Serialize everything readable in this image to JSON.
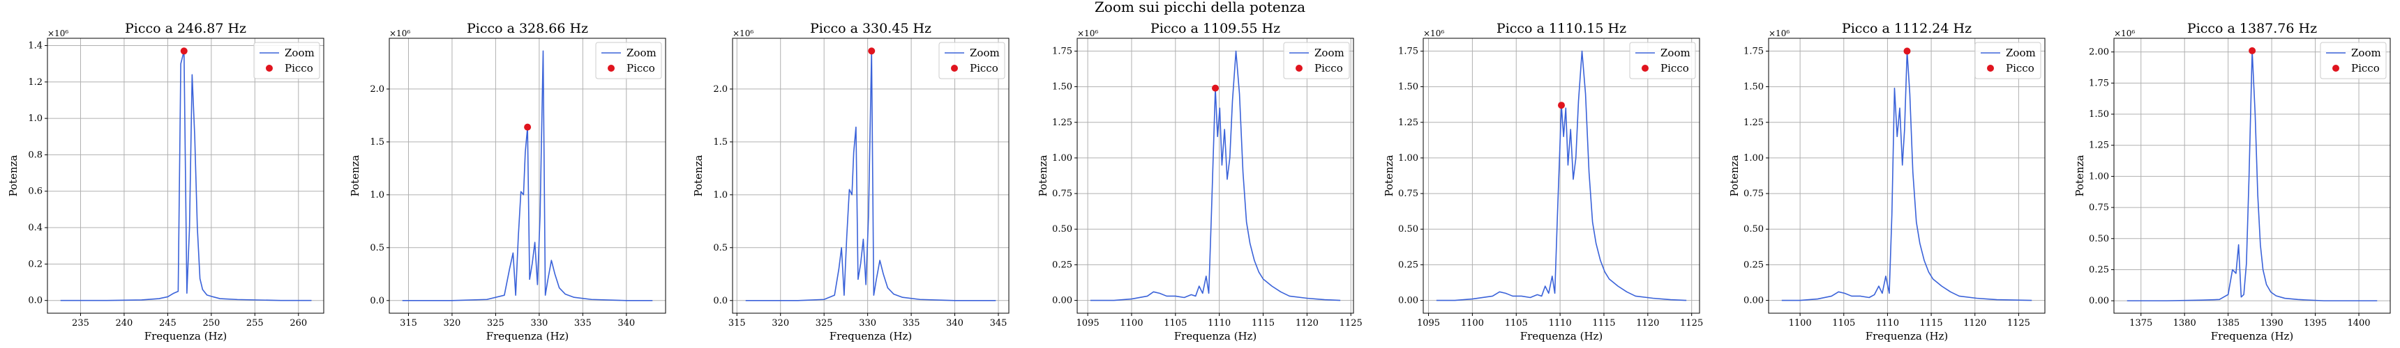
{
  "figure": {
    "suptitle": "Zoom sui picchi della potenza",
    "line_color": "#3a62d9",
    "marker_color": "#e0141e",
    "grid_color": "#b0b0b0"
  },
  "chart_data": [
    {
      "type": "line",
      "title": "Picco a 246.87 Hz",
      "xlabel": "Frequenza (Hz)",
      "ylabel": "Potenza",
      "y_offset_label": "×10⁶",
      "xlim": [
        231.2,
        262.9
      ],
      "ylim": [
        -0.07,
        1.44
      ],
      "xticks": [
        235,
        240,
        245,
        250,
        255,
        260
      ],
      "yticks": [
        0.0,
        0.2,
        0.4,
        0.6,
        0.8,
        1.0,
        1.2,
        1.4
      ],
      "ytick_labels": [
        "0.0",
        "0.2",
        "0.4",
        "0.6",
        "0.8",
        "1.0",
        "1.2",
        "1.4"
      ],
      "legend": [
        "Zoom",
        "Picco"
      ],
      "grid": true,
      "legend_position": "upper right",
      "series": [
        {
          "x": [
            232.7,
            238,
            242,
            244,
            245,
            245.7,
            246.2,
            246.5,
            246.87,
            247.2,
            247.5,
            247.8,
            248.1,
            248.4,
            248.7,
            249.0,
            249.5,
            250.2,
            251,
            253,
            258,
            261.5
          ],
          "y": [
            0.0,
            0.0,
            0.003,
            0.01,
            0.02,
            0.04,
            0.05,
            1.3,
            1.37,
            0.04,
            0.4,
            1.24,
            0.9,
            0.4,
            0.12,
            0.06,
            0.03,
            0.02,
            0.01,
            0.005,
            0.0,
            0.0
          ]
        }
      ],
      "peak": {
        "x": 246.87,
        "y": 1.37
      }
    },
    {
      "type": "line",
      "title": "Picco a 328.66 Hz",
      "xlabel": "Frequenza (Hz)",
      "ylabel": "Potenza",
      "y_offset_label": "×10⁶",
      "xlim": [
        312.8,
        344.5
      ],
      "ylim": [
        -0.12,
        2.48
      ],
      "xticks": [
        315,
        320,
        325,
        330,
        335,
        340
      ],
      "yticks": [
        0.0,
        0.5,
        1.0,
        1.5,
        2.0
      ],
      "ytick_labels": [
        "0.0",
        "0.5",
        "1.0",
        "1.5",
        "2.0"
      ],
      "legend": [
        "Zoom",
        "Picco"
      ],
      "grid": true,
      "legend_position": "upper right",
      "series": [
        {
          "x": [
            314.3,
            320,
            324,
            326,
            326.6,
            327,
            327.3,
            327.6,
            327.9,
            328.2,
            328.4,
            328.66,
            328.9,
            329.2,
            329.5,
            329.8,
            330.1,
            330.45,
            330.7,
            331.0,
            331.4,
            331.8,
            332.3,
            333,
            334,
            336,
            340,
            343
          ],
          "y": [
            0.0,
            0.0,
            0.01,
            0.05,
            0.3,
            0.45,
            0.05,
            0.6,
            1.03,
            1.0,
            1.4,
            1.64,
            0.2,
            0.35,
            0.55,
            0.15,
            0.8,
            2.36,
            0.05,
            0.2,
            0.38,
            0.25,
            0.12,
            0.06,
            0.03,
            0.01,
            0.0,
            0.0
          ]
        }
      ],
      "peak": {
        "x": 328.66,
        "y": 1.64
      }
    },
    {
      "type": "line",
      "title": "Picco a 330.45 Hz",
      "xlabel": "Frequenza (Hz)",
      "ylabel": "Potenza",
      "y_offset_label": "×10⁶",
      "xlim": [
        314.5,
        346.2
      ],
      "ylim": [
        -0.12,
        2.48
      ],
      "xticks": [
        315,
        320,
        325,
        330,
        335,
        340,
        345
      ],
      "yticks": [
        0.0,
        0.5,
        1.0,
        1.5,
        2.0
      ],
      "ytick_labels": [
        "0.0",
        "0.5",
        "1.0",
        "1.5",
        "2.0"
      ],
      "legend": [
        "Zoom",
        "Picco"
      ],
      "grid": true,
      "legend_position": "upper right",
      "series": [
        {
          "x": [
            316,
            322,
            325,
            326.2,
            326.7,
            327,
            327.3,
            327.6,
            327.9,
            328.2,
            328.4,
            328.66,
            328.9,
            329.2,
            329.5,
            329.8,
            330.1,
            330.45,
            330.7,
            331.0,
            331.4,
            331.8,
            332.3,
            333,
            334,
            336,
            340,
            344.7
          ],
          "y": [
            0.0,
            0.0,
            0.01,
            0.05,
            0.3,
            0.5,
            0.05,
            0.6,
            1.05,
            1.0,
            1.4,
            1.64,
            0.2,
            0.35,
            0.58,
            0.15,
            0.8,
            2.36,
            0.05,
            0.2,
            0.38,
            0.25,
            0.12,
            0.06,
            0.03,
            0.01,
            0.0,
            0.0
          ]
        }
      ],
      "peak": {
        "x": 330.45,
        "y": 2.36
      }
    },
    {
      "type": "line",
      "title": "Picco a 1109.55 Hz",
      "xlabel": "Frequenza (Hz)",
      "ylabel": "Potenza",
      "y_offset_label": "×10⁶",
      "xlim": [
        1093.8,
        1125.3
      ],
      "ylim": [
        -0.09,
        1.84
      ],
      "xticks": [
        1095,
        1100,
        1105,
        1110,
        1115,
        1120,
        1125
      ],
      "yticks": [
        0.0,
        0.25,
        0.5,
        0.75,
        1.0,
        1.25,
        1.5,
        1.75
      ],
      "ytick_labels": [
        "0.00",
        "0.25",
        "0.50",
        "0.75",
        "1.00",
        "1.25",
        "1.50",
        "1.75"
      ],
      "legend": [
        "Zoom",
        "Picco"
      ],
      "grid": true,
      "legend_position": "upper right",
      "series": [
        {
          "x": [
            1095.3,
            1098,
            1100,
            1101.8,
            1102.5,
            1103.2,
            1104,
            1105,
            1106,
            1106.8,
            1107.3,
            1107.7,
            1108.1,
            1108.5,
            1108.8,
            1109.1,
            1109.55,
            1109.8,
            1110.05,
            1110.3,
            1110.6,
            1110.9,
            1111.2,
            1111.5,
            1111.9,
            1112.3,
            1112.7,
            1113.1,
            1113.5,
            1114,
            1114.5,
            1115,
            1116,
            1117,
            1118,
            1120,
            1122,
            1123.8
          ],
          "y": [
            0.0,
            0.0,
            0.01,
            0.03,
            0.06,
            0.05,
            0.03,
            0.03,
            0.02,
            0.04,
            0.03,
            0.1,
            0.05,
            0.17,
            0.05,
            0.6,
            1.49,
            1.15,
            1.35,
            0.95,
            1.2,
            0.85,
            1.0,
            1.4,
            1.75,
            1.45,
            0.9,
            0.55,
            0.4,
            0.28,
            0.2,
            0.15,
            0.1,
            0.06,
            0.03,
            0.015,
            0.005,
            0.0
          ]
        }
      ],
      "peak": {
        "x": 1109.55,
        "y": 1.49
      }
    },
    {
      "type": "line",
      "title": "Picco a 1110.15 Hz",
      "xlabel": "Frequenza (Hz)",
      "ylabel": "Potenza",
      "y_offset_label": "×10⁶",
      "xlim": [
        1094.4,
        1125.9
      ],
      "ylim": [
        -0.09,
        1.84
      ],
      "xticks": [
        1095,
        1100,
        1105,
        1110,
        1115,
        1120,
        1125
      ],
      "yticks": [
        0.0,
        0.25,
        0.5,
        0.75,
        1.0,
        1.25,
        1.5,
        1.75
      ],
      "ytick_labels": [
        "0.00",
        "0.25",
        "0.50",
        "0.75",
        "1.00",
        "1.25",
        "1.50",
        "1.75"
      ],
      "legend": [
        "Zoom",
        "Picco"
      ],
      "grid": true,
      "legend_position": "upper right",
      "series": [
        {
          "x": [
            1095.9,
            1098,
            1100,
            1102.3,
            1103.1,
            1103.8,
            1104.6,
            1105.6,
            1106.6,
            1107.4,
            1107.9,
            1108.3,
            1108.7,
            1109.1,
            1109.4,
            1109.7,
            1110.15,
            1110.4,
            1110.65,
            1110.9,
            1111.2,
            1111.5,
            1111.8,
            1112.1,
            1112.5,
            1112.9,
            1113.3,
            1113.7,
            1114.1,
            1114.6,
            1115.1,
            1115.6,
            1116.6,
            1117.6,
            1118.6,
            1120.6,
            1122.6,
            1124.4
          ],
          "y": [
            0.0,
            0.0,
            0.01,
            0.03,
            0.06,
            0.05,
            0.03,
            0.03,
            0.02,
            0.04,
            0.03,
            0.1,
            0.05,
            0.17,
            0.05,
            0.6,
            1.37,
            1.15,
            1.35,
            0.95,
            1.2,
            0.85,
            1.0,
            1.4,
            1.75,
            1.45,
            0.9,
            0.55,
            0.4,
            0.28,
            0.2,
            0.15,
            0.1,
            0.06,
            0.03,
            0.015,
            0.005,
            0.0
          ]
        }
      ],
      "peak": {
        "x": 1110.15,
        "y": 1.37
      }
    },
    {
      "type": "line",
      "title": "Picco a 1112.24 Hz",
      "xlabel": "Frequenza (Hz)",
      "ylabel": "Potenza",
      "y_offset_label": "×10⁶",
      "xlim": [
        1096.4,
        1128.0
      ],
      "ylim": [
        -0.09,
        1.84
      ],
      "xticks": [
        1100,
        1105,
        1110,
        1115,
        1120,
        1125
      ],
      "yticks": [
        0.0,
        0.25,
        0.5,
        0.75,
        1.0,
        1.25,
        1.5,
        1.75
      ],
      "ytick_labels": [
        "0.00",
        "0.25",
        "0.50",
        "0.75",
        "1.00",
        "1.25",
        "1.50",
        "1.75"
      ],
      "legend": [
        "Zoom",
        "Picco"
      ],
      "grid": true,
      "legend_position": "upper right",
      "series": [
        {
          "x": [
            1097.9,
            1100,
            1102,
            1103.6,
            1104.4,
            1105.1,
            1105.9,
            1106.9,
            1107.9,
            1108.5,
            1109.0,
            1109.4,
            1109.8,
            1110.2,
            1110.5,
            1110.8,
            1111.1,
            1111.4,
            1111.7,
            1111.95,
            1112.24,
            1112.55,
            1112.9,
            1113.3,
            1113.7,
            1114.2,
            1114.7,
            1115.2,
            1116.2,
            1117.2,
            1118.2,
            1120.2,
            1122.5,
            1126.5
          ],
          "y": [
            0.0,
            0.0,
            0.01,
            0.03,
            0.06,
            0.05,
            0.03,
            0.03,
            0.02,
            0.04,
            0.1,
            0.05,
            0.17,
            0.05,
            0.6,
            1.49,
            1.15,
            1.35,
            0.95,
            1.2,
            1.75,
            1.45,
            0.9,
            0.55,
            0.4,
            0.28,
            0.2,
            0.15,
            0.1,
            0.06,
            0.03,
            0.015,
            0.005,
            0.0
          ]
        }
      ],
      "peak": {
        "x": 1112.24,
        "y": 1.75
      }
    },
    {
      "type": "line",
      "title": "Picco a 1387.76 Hz",
      "xlabel": "Frequenza (Hz)",
      "ylabel": "Potenza",
      "y_offset_label": "×10⁶",
      "xlim": [
        1371.9,
        1403.6
      ],
      "ylim": [
        -0.1,
        2.11
      ],
      "xticks": [
        1375,
        1380,
        1385,
        1390,
        1395,
        1400
      ],
      "yticks": [
        0.0,
        0.25,
        0.5,
        0.75,
        1.0,
        1.25,
        1.5,
        1.75,
        2.0
      ],
      "ytick_labels": [
        "0.00",
        "0.25",
        "0.50",
        "0.75",
        "1.00",
        "1.25",
        "1.50",
        "1.75",
        "2.00"
      ],
      "legend": [
        "Zoom",
        "Picco"
      ],
      "grid": true,
      "legend_position": "upper right",
      "series": [
        {
          "x": [
            1373.4,
            1378,
            1382,
            1384,
            1385,
            1385.5,
            1385.9,
            1386.2,
            1386.5,
            1386.8,
            1387.1,
            1387.4,
            1387.76,
            1388.1,
            1388.4,
            1388.7,
            1389.0,
            1389.4,
            1389.9,
            1390.5,
            1391.5,
            1393,
            1396,
            1402.1
          ],
          "y": [
            0.0,
            0.0,
            0.005,
            0.01,
            0.05,
            0.25,
            0.22,
            0.45,
            0.03,
            0.05,
            0.3,
            1.0,
            2.01,
            1.5,
            0.85,
            0.45,
            0.25,
            0.13,
            0.07,
            0.04,
            0.02,
            0.01,
            0.0,
            0.0
          ]
        }
      ],
      "peak": {
        "x": 1387.76,
        "y": 2.01
      }
    }
  ]
}
